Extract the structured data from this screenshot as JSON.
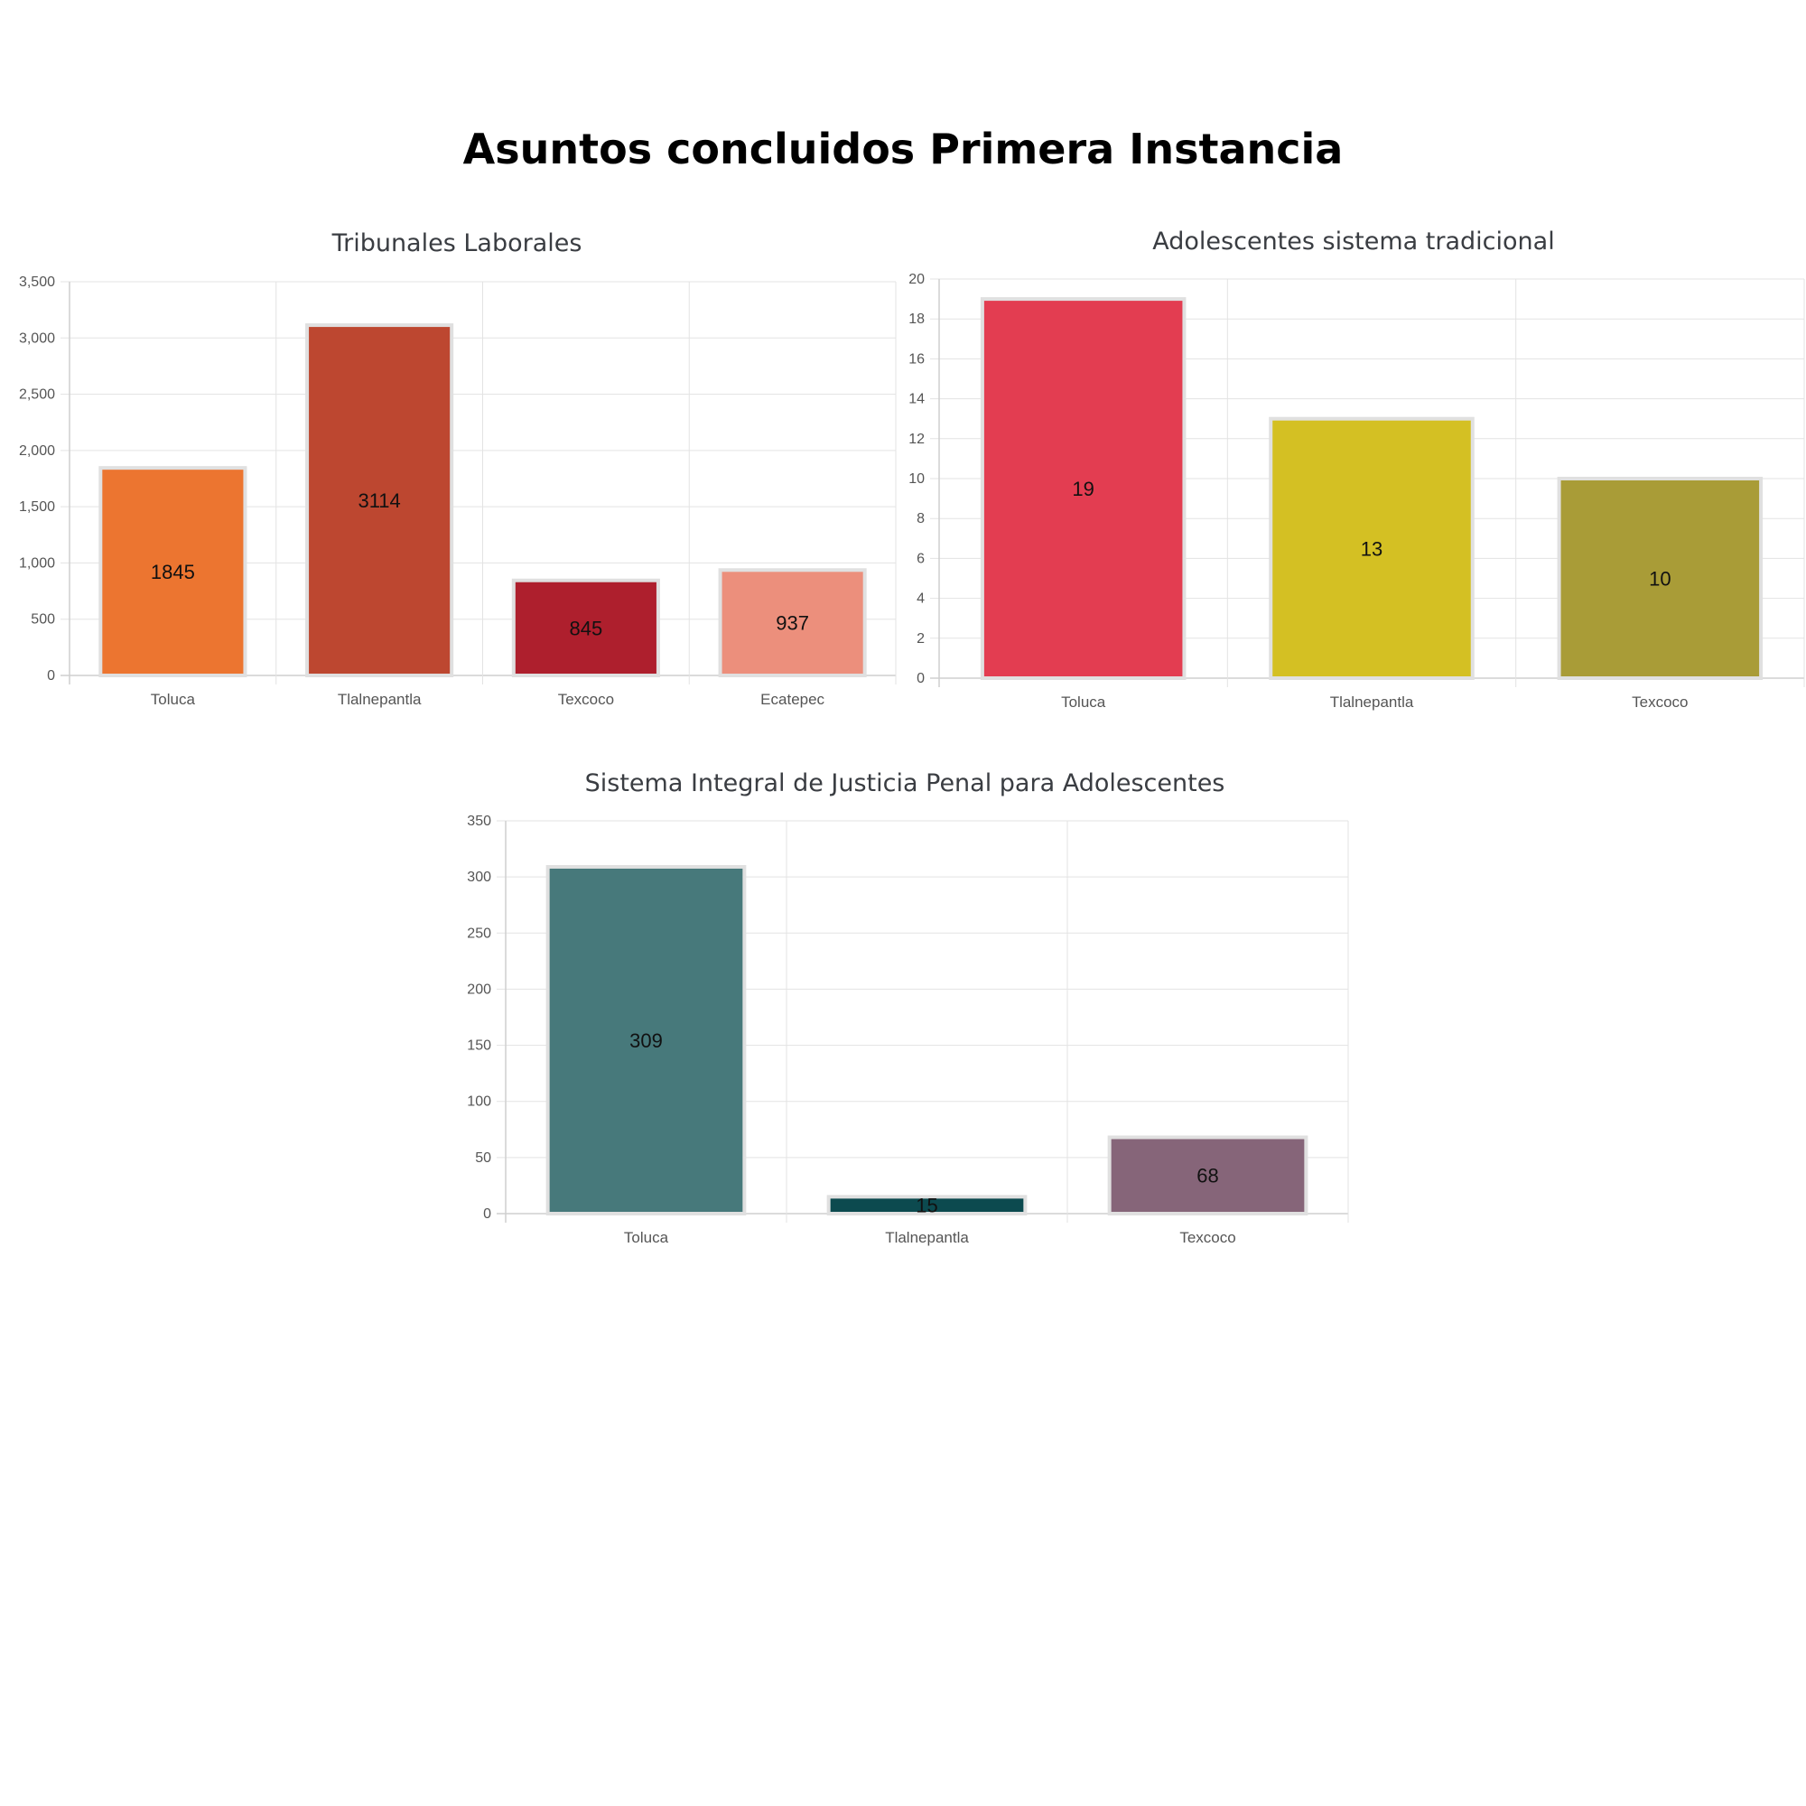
{
  "page": {
    "title": "Asuntos concluidos Primera Instancia"
  },
  "chart_data": [
    {
      "type": "bar",
      "title": "Tribunales Laborales",
      "categories": [
        "Toluca",
        "Tlalnepantla",
        "Texcoco",
        "Ecatepec"
      ],
      "values": [
        1845,
        3114,
        845,
        937
      ],
      "colors": [
        "#ec7530",
        "#bd4730",
        "#ae1f2d",
        "#ec8f7c"
      ],
      "ylim": [
        0,
        3500
      ],
      "ystep": 500,
      "ytick_labels": [
        "0",
        "500",
        "1,000",
        "1,500",
        "2,000",
        "2,500",
        "3,000",
        "3,500"
      ],
      "grid": true,
      "legend": "none"
    },
    {
      "type": "bar",
      "title": "Adolescentes sistema tradicional",
      "categories": [
        "Toluca",
        "Tlalnepantla",
        "Texcoco"
      ],
      "values": [
        19,
        13,
        10
      ],
      "colors": [
        "#e33d51",
        "#d4c023",
        "#a99c37"
      ],
      "ylim": [
        0,
        20
      ],
      "ystep": 2,
      "ytick_labels": [
        "0",
        "2",
        "4",
        "6",
        "8",
        "10",
        "12",
        "14",
        "16",
        "18",
        "20"
      ],
      "grid": true,
      "legend": "none"
    },
    {
      "type": "bar",
      "title": "Sistema Integral de Justicia Penal para Adolescentes",
      "categories": [
        "Toluca",
        "Tlalnepantla",
        "Texcoco"
      ],
      "values": [
        309,
        15,
        68
      ],
      "colors": [
        "#47797b",
        "#0c4a4f",
        "#866579"
      ],
      "ylim": [
        0,
        350
      ],
      "ystep": 50,
      "ytick_labels": [
        "0",
        "50",
        "100",
        "150",
        "200",
        "250",
        "300",
        "350"
      ],
      "grid": true,
      "legend": "none"
    }
  ]
}
